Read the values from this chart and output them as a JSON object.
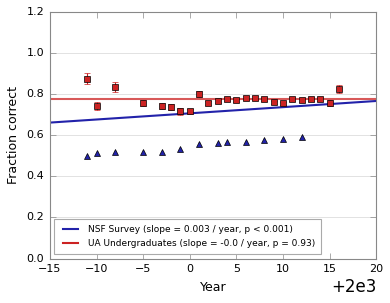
{
  "title": "",
  "xlabel": "Year",
  "ylabel": "Fraction correct",
  "xlim": [
    1985,
    2020
  ],
  "ylim": [
    0.0,
    1.2
  ],
  "yticks": [
    0.0,
    0.2,
    0.4,
    0.6,
    0.8,
    1.0,
    1.2
  ],
  "xticks": [
    1985,
    1990,
    1995,
    2000,
    2005,
    2010,
    2015,
    2020
  ],
  "nsf_years": [
    1989,
    1990,
    1992,
    1995,
    1997,
    1999,
    2001,
    2003,
    2004,
    2006,
    2008,
    2010,
    2012
  ],
  "nsf_values": [
    0.5,
    0.515,
    0.52,
    0.52,
    0.52,
    0.535,
    0.555,
    0.56,
    0.565,
    0.565,
    0.575,
    0.58,
    0.59
  ],
  "nsf_color": "#2222aa",
  "nsf_line_start_x": 1985,
  "nsf_line_end_x": 2020,
  "nsf_intercept": -5.294,
  "nsf_slope": 0.003,
  "ua_years": [
    1989,
    1990,
    1992,
    1995,
    1997,
    1998,
    1999,
    2000,
    2001,
    2002,
    2003,
    2004,
    2005,
    2006,
    2007,
    2008,
    2009,
    2010,
    2011,
    2012,
    2013,
    2014,
    2015,
    2016
  ],
  "ua_values": [
    0.875,
    0.74,
    0.835,
    0.755,
    0.74,
    0.735,
    0.715,
    0.715,
    0.8,
    0.755,
    0.765,
    0.775,
    0.77,
    0.78,
    0.78,
    0.775,
    0.76,
    0.755,
    0.775,
    0.77,
    0.775,
    0.775,
    0.755,
    0.825
  ],
  "ua_errors": [
    0.025,
    0.02,
    0.025,
    0.015,
    0.015,
    0.015,
    0.015,
    0.01,
    0.015,
    0.01,
    0.01,
    0.008,
    0.008,
    0.008,
    0.008,
    0.008,
    0.008,
    0.008,
    0.008,
    0.008,
    0.008,
    0.008,
    0.015,
    0.02
  ],
  "ua_color": "#cc2222",
  "ua_line_y": 0.774,
  "legend_nsf": "NSF Survey (slope = 0.003 / year, p < 0.001)",
  "legend_ua": "UA Undergraduates (slope = -0.0 / year, p = 0.93)",
  "fig_bg_color": "#e8e8e8",
  "plot_bg_color": "#ffffff",
  "grid_color": "#dddddd",
  "spine_color": "#888888",
  "tick_color": "#333333"
}
